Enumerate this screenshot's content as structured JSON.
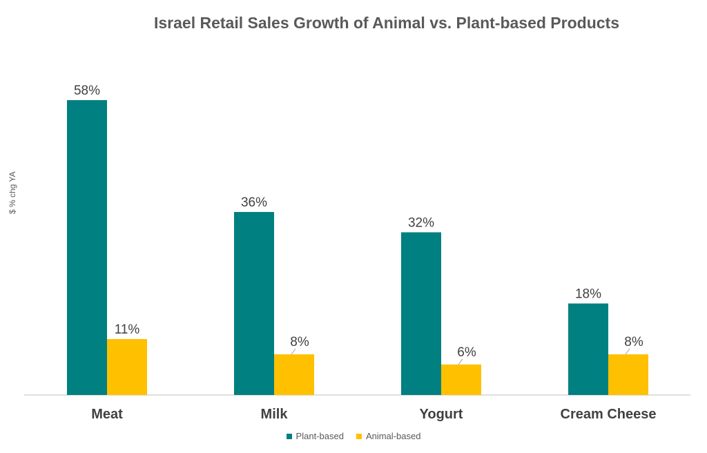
{
  "chart_data": {
    "type": "bar",
    "title": "Israel Retail Sales Growth of Animal vs. Plant-based Products",
    "xlabel": "",
    "ylabel": "$ % chg YA",
    "categories": [
      "Meat",
      "Milk",
      "Yogurt",
      "Cream Cheese"
    ],
    "series": [
      {
        "name": "Plant-based",
        "values": [
          58,
          36,
          32,
          18
        ],
        "labels": [
          "58%",
          "36%",
          "32%",
          "18%"
        ],
        "color": "#008080"
      },
      {
        "name": "Animal-based",
        "values": [
          11,
          8,
          6,
          8
        ],
        "labels": [
          "11%",
          "8%",
          "6%",
          "8%"
        ],
        "color": "#FFC000"
      }
    ],
    "ylim": [
      0,
      58
    ],
    "grid": false,
    "legend_position": "bottom"
  }
}
